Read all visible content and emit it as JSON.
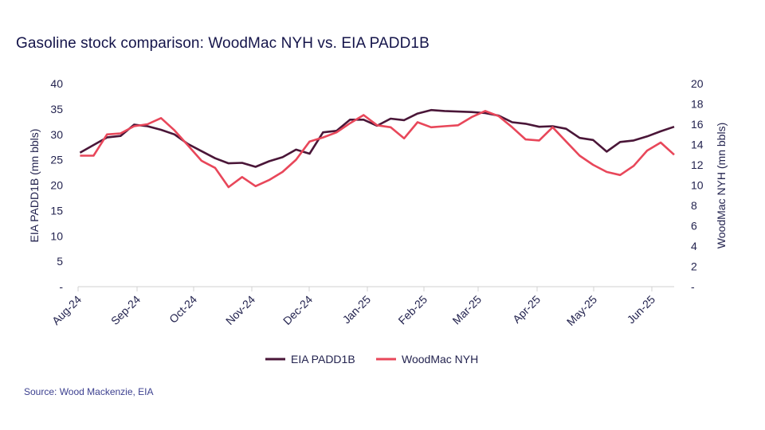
{
  "chart_data": {
    "type": "line",
    "title": "Gasoline stock comparison: WoodMac NYH vs. EIA PADD1B",
    "source": "Source: Wood Mackenzie, EIA",
    "ylabel_left": "EIA PADD1B (mn bbls)",
    "ylabel_right": "WoodMac NYH (mn bbls)",
    "ylim_left": [
      0,
      40
    ],
    "ylim_right": [
      0,
      20
    ],
    "yticks_left": [
      "-",
      "5",
      "10",
      "15",
      "20",
      "25",
      "30",
      "35",
      "40"
    ],
    "yticks_right": [
      "-",
      "2",
      "4",
      "6",
      "8",
      "10",
      "12",
      "14",
      "16",
      "18",
      "20"
    ],
    "xticks": [
      {
        "date": "2024-08-01",
        "label": "Aug-24"
      },
      {
        "date": "2024-09-01",
        "label": "Sep-24"
      },
      {
        "date": "2024-10-01",
        "label": "Oct-24"
      },
      {
        "date": "2024-11-01",
        "label": "Nov-24"
      },
      {
        "date": "2024-12-01",
        "label": "Dec-24"
      },
      {
        "date": "2025-01-01",
        "label": "Jan-25"
      },
      {
        "date": "2025-02-01",
        "label": "Feb-25"
      },
      {
        "date": "2025-03-01",
        "label": "Mar-25"
      },
      {
        "date": "2025-04-01",
        "label": "Apr-25"
      },
      {
        "date": "2025-05-01",
        "label": "May-25"
      },
      {
        "date": "2025-06-01",
        "label": "Jun-25"
      }
    ],
    "grid": false,
    "legend": "bottom",
    "x": [
      "2024-08-02",
      "2024-08-09",
      "2024-08-16",
      "2024-08-23",
      "2024-08-30",
      "2024-09-06",
      "2024-09-13",
      "2024-09-20",
      "2024-09-27",
      "2024-10-04",
      "2024-10-11",
      "2024-10-18",
      "2024-10-25",
      "2024-11-01",
      "2024-11-08",
      "2024-11-15",
      "2024-11-22",
      "2024-11-29",
      "2024-12-06",
      "2024-12-13",
      "2024-12-20",
      "2024-12-27",
      "2025-01-03",
      "2025-01-10",
      "2025-01-17",
      "2025-01-24",
      "2025-01-31",
      "2025-02-07",
      "2025-02-14",
      "2025-02-21",
      "2025-02-28",
      "2025-03-07",
      "2025-03-14",
      "2025-03-21",
      "2025-03-28",
      "2025-04-04",
      "2025-04-11",
      "2025-04-18",
      "2025-04-25",
      "2025-05-02",
      "2025-05-09",
      "2025-05-16",
      "2025-05-23",
      "2025-05-30",
      "2025-06-06"
    ],
    "series": [
      {
        "name": "EIA PADD1B",
        "axis": "left",
        "color": "#4a1638",
        "values": [
          26.4,
          27.9,
          29.4,
          29.7,
          31.9,
          31.6,
          30.9,
          30.0,
          28.1,
          26.7,
          25.3,
          24.3,
          24.4,
          23.6,
          24.7,
          25.5,
          27.0,
          26.2,
          30.4,
          30.7,
          32.9,
          32.9,
          31.7,
          33.1,
          32.8,
          34.1,
          34.8,
          34.6,
          34.5,
          34.4,
          34.2,
          33.7,
          32.4,
          32.1,
          31.5,
          31.6,
          31.1,
          29.3,
          28.9,
          26.6,
          28.5,
          28.8,
          29.6,
          30.6,
          31.5
        ]
      },
      {
        "name": "WoodMac NYH",
        "axis": "right",
        "color": "#e8475a",
        "values": [
          12.9,
          12.9,
          15.0,
          15.1,
          15.8,
          16.0,
          16.6,
          15.4,
          13.9,
          12.4,
          11.7,
          9.8,
          10.8,
          9.9,
          10.5,
          11.3,
          12.5,
          14.3,
          14.7,
          15.2,
          16.1,
          16.9,
          15.9,
          15.7,
          14.6,
          16.2,
          15.7,
          15.8,
          15.9,
          16.7,
          17.3,
          16.8,
          15.7,
          14.5,
          14.4,
          15.7,
          14.3,
          12.9,
          12.0,
          11.3,
          11.0,
          11.9,
          13.4,
          14.2,
          13.0
        ]
      }
    ]
  }
}
